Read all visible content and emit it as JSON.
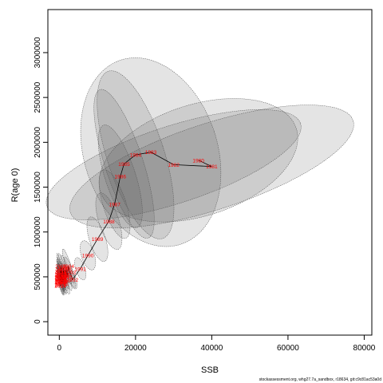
{
  "chart_data": {
    "type": "scatter",
    "title": "",
    "xlabel": "SSB",
    "ylabel": "R(age 0)",
    "xlim": [
      -3000,
      82000
    ],
    "ylim": [
      -150000,
      3480000
    ],
    "x_ticks": [
      0,
      20000,
      40000,
      60000,
      80000
    ],
    "x_tick_labels": [
      "0",
      "20000",
      "40000",
      "60000",
      "80000"
    ],
    "y_ticks": [
      0,
      500000,
      1000000,
      1500000,
      2000000,
      2500000,
      3000000
    ],
    "y_tick_labels": [
      "0",
      "500000",
      "1000000",
      "1500000",
      "2000000",
      "2500000",
      "3000000"
    ],
    "grid": false,
    "legend": "none",
    "footnote": "stockassessment.org, whg27.7a_sandbox, r18634, git:c9c81ac53a0d",
    "colors": {
      "line": "#000000",
      "labels": "#ff0000",
      "ellipse_fill": "#5a5a5a",
      "ellipse_fill_opacity": 0.16,
      "ellipse_stroke": "#555555"
    },
    "series": [
      {
        "points": [
          {
            "label": "1980",
            "ssb": 36500,
            "rec": 1800000,
            "ssb_sd": 27000,
            "rec_sd": 620000
          },
          {
            "label": "1981",
            "ssb": 40000,
            "rec": 1730000,
            "ssb_sd": 39000,
            "rec_sd": 480000
          },
          {
            "label": "1982",
            "ssb": 30000,
            "rec": 1750000,
            "ssb_sd": 35000,
            "rec_sd": 430000
          },
          {
            "label": "1983",
            "ssb": 24000,
            "rec": 1890000,
            "ssb_sd": 17500,
            "rec_sd": 1080000
          },
          {
            "label": "1984",
            "ssb": 20000,
            "rec": 1860000,
            "ssb_sd": 7500,
            "rec_sd": 980000
          },
          {
            "label": "1985",
            "ssb": 17000,
            "rec": 1760000,
            "ssb_sd": 5000,
            "rec_sd": 870000
          },
          {
            "label": "1986",
            "ssb": 16000,
            "rec": 1620000,
            "ssb_sd": 4000,
            "rec_sd": 600000
          },
          {
            "label": "1987",
            "ssb": 14500,
            "rec": 1310000,
            "ssb_sd": 3000,
            "rec_sd": 400000
          },
          {
            "label": "1988",
            "ssb": 13000,
            "rec": 1120000,
            "ssb_sd": 2600,
            "rec_sd": 330000
          },
          {
            "label": "1989",
            "ssb": 10000,
            "rec": 920000,
            "ssb_sd": 2100,
            "rec_sd": 260000
          },
          {
            "label": "1990",
            "ssb": 7500,
            "rec": 740000,
            "ssb_sd": 1700,
            "rec_sd": 170000
          },
          {
            "label": "1991",
            "ssb": 5500,
            "rec": 590000,
            "ssb_sd": 1200,
            "rec_sd": 130000
          },
          {
            "label": "1992",
            "ssb": 3500,
            "rec": 470000,
            "ssb_sd": 900,
            "rec_sd": 110000
          },
          {
            "label": "1993",
            "ssb": 2800,
            "rec": 550000,
            "ssb_sd": 800,
            "rec_sd": 180000
          },
          {
            "label": "1994",
            "ssb": 2400,
            "rec": 620000,
            "ssb_sd": 700,
            "rec_sd": 200000
          },
          {
            "label": "1995",
            "ssb": 2000,
            "rec": 500000,
            "ssb_sd": 650,
            "rec_sd": 160000
          },
          {
            "label": "1996",
            "ssb": 1800,
            "rec": 580000,
            "ssb_sd": 600,
            "rec_sd": 170000
          },
          {
            "label": "1997",
            "ssb": 1500,
            "rec": 450000,
            "ssb_sd": 550,
            "rec_sd": 150000
          },
          {
            "label": "1998",
            "ssb": 1300,
            "rec": 520000,
            "ssb_sd": 500,
            "rec_sd": 160000
          },
          {
            "label": "1999",
            "ssb": 1100,
            "rec": 600000,
            "ssb_sd": 450,
            "rec_sd": 170000
          },
          {
            "label": "2000",
            "ssb": 1000,
            "rec": 480000,
            "ssb_sd": 400,
            "rec_sd": 140000
          },
          {
            "label": "2001",
            "ssb": 900,
            "rec": 430000,
            "ssb_sd": 380,
            "rec_sd": 130000
          },
          {
            "label": "2002",
            "ssb": 800,
            "rec": 560000,
            "ssb_sd": 350,
            "rec_sd": 150000
          },
          {
            "label": "2003",
            "ssb": 700,
            "rec": 510000,
            "ssb_sd": 330,
            "rec_sd": 140000
          },
          {
            "label": "2004",
            "ssb": 650,
            "rec": 440000,
            "ssb_sd": 300,
            "rec_sd": 130000
          },
          {
            "label": "2005",
            "ssb": 600,
            "rec": 530000,
            "ssb_sd": 280,
            "rec_sd": 140000
          },
          {
            "label": "2006",
            "ssb": 550,
            "rec": 470000,
            "ssb_sd": 260,
            "rec_sd": 130000
          },
          {
            "label": "2007",
            "ssb": 500,
            "rec": 580000,
            "ssb_sd": 250,
            "rec_sd": 150000
          },
          {
            "label": "2008",
            "ssb": 450,
            "rec": 620000,
            "ssb_sd": 240,
            "rec_sd": 150000
          },
          {
            "label": "2009",
            "ssb": 420,
            "rec": 490000,
            "ssb_sd": 230,
            "rec_sd": 130000
          },
          {
            "label": "2010",
            "ssb": 400,
            "rec": 450000,
            "ssb_sd": 220,
            "rec_sd": 120000
          },
          {
            "label": "2011",
            "ssb": 380,
            "rec": 540000,
            "ssb_sd": 210,
            "rec_sd": 140000
          },
          {
            "label": "2012",
            "ssb": 360,
            "rec": 500000,
            "ssb_sd": 200,
            "rec_sd": 130000
          },
          {
            "label": "2013",
            "ssb": 340,
            "rec": 420000,
            "ssb_sd": 200,
            "rec_sd": 120000
          },
          {
            "label": "2014",
            "ssb": 330,
            "rec": 560000,
            "ssb_sd": 190,
            "rec_sd": 140000
          },
          {
            "label": "2015",
            "ssb": 320,
            "rec": 480000,
            "ssb_sd": 190,
            "rec_sd": 130000
          },
          {
            "label": "2016",
            "ssb": 310,
            "rec": 410000,
            "ssb_sd": 180,
            "rec_sd": 120000
          },
          {
            "label": "2017",
            "ssb": 300,
            "rec": 520000,
            "ssb_sd": 180,
            "rec_sd": 130000
          },
          {
            "label": "2018",
            "ssb": 290,
            "rec": 460000,
            "ssb_sd": 170,
            "rec_sd": 120000
          },
          {
            "label": "2019",
            "ssb": 280,
            "rec": 400000,
            "ssb_sd": 170,
            "rec_sd": 110000
          },
          {
            "label": "2020",
            "ssb": 270,
            "rec": 500000,
            "ssb_sd": 160,
            "rec_sd": 120000
          },
          {
            "label": "2021",
            "ssb": 260,
            "rec": 440000,
            "ssb_sd": 160,
            "rec_sd": 110000
          }
        ]
      }
    ]
  }
}
